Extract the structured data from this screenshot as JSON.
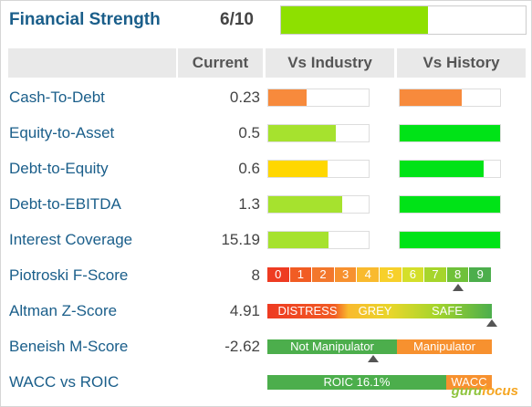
{
  "header": {
    "title": "Financial Strength",
    "score": "6/10",
    "score_fraction": 0.6,
    "score_color": "#8ee000"
  },
  "columns": {
    "current": "Current",
    "vs_industry": "Vs Industry",
    "vs_history": "Vs History"
  },
  "rows": [
    {
      "label": "Cash-To-Debt",
      "value": "0.23",
      "industry": {
        "fill": 0.38,
        "color": "#f78a3c"
      },
      "history": {
        "fill": 0.62,
        "color": "#f78a3c"
      }
    },
    {
      "label": "Equity-to-Asset",
      "value": "0.5",
      "industry": {
        "fill": 0.67,
        "color": "#a6e22e"
      },
      "history": {
        "fill": 1.0,
        "color": "#00e317"
      }
    },
    {
      "label": "Debt-to-Equity",
      "value": "0.6",
      "industry": {
        "fill": 0.59,
        "color": "#ffd700"
      },
      "history": {
        "fill": 0.84,
        "color": "#00e317"
      }
    },
    {
      "label": "Debt-to-EBITDA",
      "value": "1.3",
      "industry": {
        "fill": 0.74,
        "color": "#a6e22e"
      },
      "history": {
        "fill": 1.0,
        "color": "#00e317"
      }
    },
    {
      "label": "Interest Coverage",
      "value": "15.19",
      "industry": {
        "fill": 0.6,
        "color": "#a6e22e"
      },
      "history": {
        "fill": 1.0,
        "color": "#00e317"
      }
    }
  ],
  "piotroski": {
    "label": "Piotroski F-Score",
    "value": "8",
    "scale": [
      "0",
      "1",
      "2",
      "3",
      "4",
      "5",
      "6",
      "7",
      "8",
      "9"
    ],
    "colors": [
      "#ee3b22",
      "#f15c23",
      "#f3772c",
      "#f7912f",
      "#f9ba2e",
      "#f7d02b",
      "#d4df2a",
      "#a6d52b",
      "#6fc13a",
      "#4cae4c"
    ],
    "marker_index": 8
  },
  "altman": {
    "label": "Altman Z-Score",
    "value": "4.91",
    "zones": [
      "DISTRESS",
      "GREY",
      "SAFE"
    ],
    "marker_fraction": 1.0
  },
  "beneish": {
    "label": "Beneish M-Score",
    "value": "-2.62",
    "zones": [
      "Not Manipulator",
      "Manipulator"
    ],
    "marker_fraction": 0.47
  },
  "wacc": {
    "label": "WACC vs ROIC",
    "roic_label": "ROIC 16.1%",
    "wacc_label": "WACC"
  },
  "brand": {
    "part1": "guru",
    "part2": "focus"
  }
}
